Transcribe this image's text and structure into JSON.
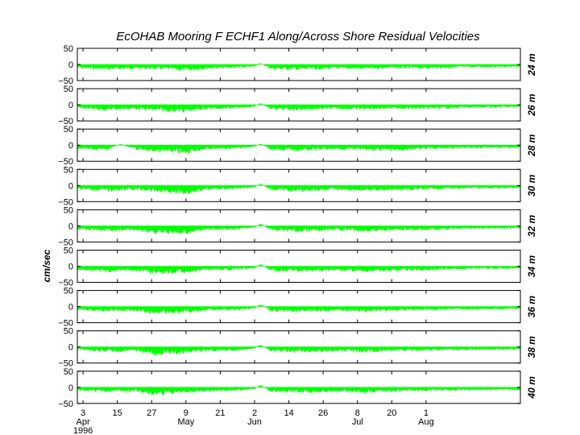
{
  "chart_data": {
    "type": "area",
    "title": "EcOHAB Mooring F   ECHF1   Along/Across Shore Residual Velocities",
    "ylabel": "cm/sec",
    "ylim": [
      -50,
      50
    ],
    "yticks": [
      "50",
      "0",
      "−50"
    ],
    "grid": false,
    "color": "#00ff00",
    "xlim_days_from_apr1": [
      0,
      155
    ],
    "xticks": [
      {
        "label": "3",
        "day": 2
      },
      {
        "label": "15",
        "day": 14
      },
      {
        "label": "27",
        "day": 26
      },
      {
        "label": "9",
        "day": 38
      },
      {
        "label": "21",
        "day": 50
      },
      {
        "label": "2",
        "day": 62
      },
      {
        "label": "14",
        "day": 74
      },
      {
        "label": "26",
        "day": 86
      },
      {
        "label": "8",
        "day": 98
      },
      {
        "label": "20",
        "day": 110
      },
      {
        "label": "1",
        "day": 122
      }
    ],
    "month_labels": [
      {
        "label": "Apr",
        "day": 2
      },
      {
        "label": "May",
        "day": 38
      },
      {
        "label": "Jun",
        "day": 62
      },
      {
        "label": "Jul",
        "day": 98
      },
      {
        "label": "Aug",
        "day": 122
      }
    ],
    "year_label": "1996",
    "series": [
      {
        "name": "24 m",
        "envelope": [
          [
            0,
            -12
          ],
          [
            10,
            -18
          ],
          [
            20,
            -14
          ],
          [
            30,
            -16
          ],
          [
            38,
            -22
          ],
          [
            45,
            -14
          ],
          [
            55,
            -12
          ],
          [
            62,
            -8
          ],
          [
            64,
            4
          ],
          [
            68,
            -16
          ],
          [
            78,
            -18
          ],
          [
            90,
            -14
          ],
          [
            100,
            -16
          ],
          [
            110,
            -12
          ],
          [
            120,
            -14
          ],
          [
            135,
            -10
          ],
          [
            155,
            -8
          ]
        ]
      },
      {
        "name": "26 m",
        "envelope": [
          [
            0,
            -12
          ],
          [
            10,
            -18
          ],
          [
            20,
            -14
          ],
          [
            27,
            -20
          ],
          [
            38,
            -24
          ],
          [
            45,
            -14
          ],
          [
            55,
            -12
          ],
          [
            62,
            -6
          ],
          [
            64,
            5
          ],
          [
            68,
            -16
          ],
          [
            78,
            -18
          ],
          [
            90,
            -14
          ],
          [
            100,
            -16
          ],
          [
            110,
            -12
          ],
          [
            120,
            -14
          ],
          [
            135,
            -10
          ],
          [
            155,
            -8
          ]
        ]
      },
      {
        "name": "28 m",
        "envelope": [
          [
            0,
            -12
          ],
          [
            10,
            -18
          ],
          [
            15,
            4
          ],
          [
            20,
            -14
          ],
          [
            27,
            -22
          ],
          [
            38,
            -26
          ],
          [
            45,
            -14
          ],
          [
            55,
            -12
          ],
          [
            62,
            -6
          ],
          [
            64,
            5
          ],
          [
            68,
            -16
          ],
          [
            78,
            -18
          ],
          [
            90,
            -14
          ],
          [
            100,
            -16
          ],
          [
            108,
            -20
          ],
          [
            120,
            -14
          ],
          [
            135,
            -10
          ],
          [
            155,
            -8
          ]
        ]
      },
      {
        "name": "30 m",
        "envelope": [
          [
            0,
            -12
          ],
          [
            10,
            -18
          ],
          [
            20,
            -14
          ],
          [
            27,
            -20
          ],
          [
            38,
            -28
          ],
          [
            45,
            -14
          ],
          [
            55,
            -12
          ],
          [
            62,
            -6
          ],
          [
            64,
            6
          ],
          [
            68,
            -16
          ],
          [
            78,
            -20
          ],
          [
            90,
            -14
          ],
          [
            100,
            -18
          ],
          [
            108,
            -16
          ],
          [
            120,
            -14
          ],
          [
            135,
            -10
          ],
          [
            155,
            -8
          ]
        ]
      },
      {
        "name": "32 m",
        "envelope": [
          [
            0,
            -12
          ],
          [
            10,
            -18
          ],
          [
            20,
            -14
          ],
          [
            27,
            -24
          ],
          [
            38,
            -24
          ],
          [
            45,
            -14
          ],
          [
            55,
            -12
          ],
          [
            62,
            -6
          ],
          [
            64,
            8
          ],
          [
            68,
            -16
          ],
          [
            78,
            -20
          ],
          [
            90,
            -14
          ],
          [
            100,
            -18
          ],
          [
            108,
            -16
          ],
          [
            120,
            -14
          ],
          [
            135,
            -10
          ],
          [
            155,
            -8
          ]
        ]
      },
      {
        "name": "34 m",
        "envelope": [
          [
            0,
            -12
          ],
          [
            10,
            -18
          ],
          [
            20,
            -14
          ],
          [
            27,
            -24
          ],
          [
            38,
            -22
          ],
          [
            45,
            -14
          ],
          [
            55,
            -12
          ],
          [
            62,
            -6
          ],
          [
            64,
            8
          ],
          [
            68,
            -16
          ],
          [
            78,
            -18
          ],
          [
            90,
            -14
          ],
          [
            100,
            -18
          ],
          [
            108,
            -16
          ],
          [
            120,
            -14
          ],
          [
            135,
            -10
          ],
          [
            155,
            -8
          ]
        ]
      },
      {
        "name": "36 m",
        "envelope": [
          [
            0,
            -10
          ],
          [
            10,
            -16
          ],
          [
            20,
            -14
          ],
          [
            27,
            -24
          ],
          [
            38,
            -20
          ],
          [
            45,
            -14
          ],
          [
            55,
            -12
          ],
          [
            62,
            -6
          ],
          [
            64,
            8
          ],
          [
            68,
            -16
          ],
          [
            78,
            -18
          ],
          [
            90,
            -14
          ],
          [
            100,
            -18
          ],
          [
            108,
            -14
          ],
          [
            120,
            -12
          ],
          [
            135,
            -10
          ],
          [
            155,
            -8
          ]
        ]
      },
      {
        "name": "38 m",
        "envelope": [
          [
            0,
            -10
          ],
          [
            10,
            -16
          ],
          [
            20,
            -14
          ],
          [
            27,
            -26
          ],
          [
            38,
            -20
          ],
          [
            45,
            -14
          ],
          [
            55,
            -12
          ],
          [
            62,
            -6
          ],
          [
            64,
            8
          ],
          [
            68,
            -16
          ],
          [
            78,
            -18
          ],
          [
            90,
            -14
          ],
          [
            100,
            -18
          ],
          [
            108,
            -14
          ],
          [
            120,
            -12
          ],
          [
            135,
            -10
          ],
          [
            155,
            -8
          ]
        ]
      },
      {
        "name": "40 m",
        "envelope": [
          [
            0,
            -10
          ],
          [
            10,
            -16
          ],
          [
            20,
            -14
          ],
          [
            27,
            -26
          ],
          [
            38,
            -18
          ],
          [
            45,
            -14
          ],
          [
            55,
            -12
          ],
          [
            62,
            -6
          ],
          [
            64,
            8
          ],
          [
            68,
            -16
          ],
          [
            78,
            -18
          ],
          [
            90,
            -14
          ],
          [
            100,
            -18
          ],
          [
            108,
            -14
          ],
          [
            120,
            -12
          ],
          [
            135,
            -10
          ],
          [
            155,
            -8
          ]
        ]
      }
    ]
  }
}
